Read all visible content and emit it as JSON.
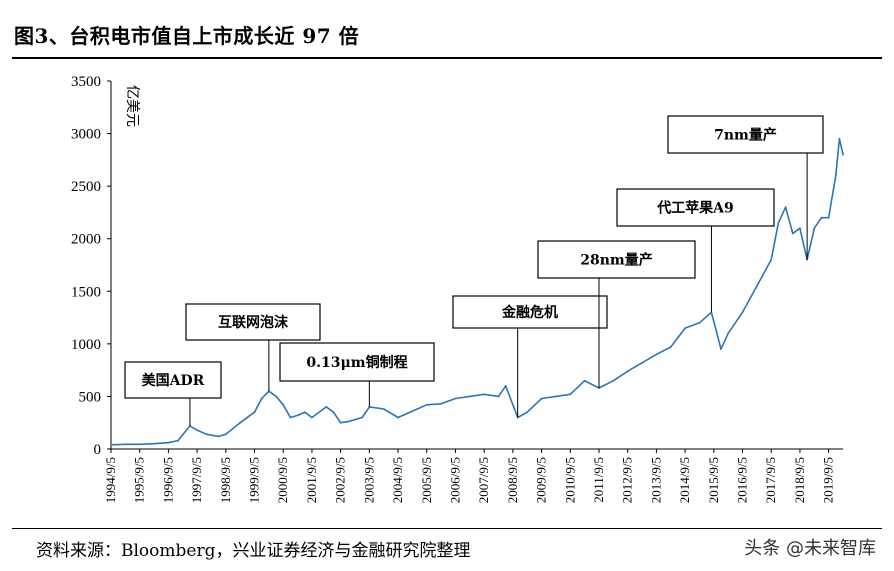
{
  "title": "图3、台积电市值自上市成长近 97 倍",
  "source": "资料来源：Bloomberg，兴业证券经济与金融研究院整理",
  "watermark": "头条 @未来智库",
  "chart_data": {
    "type": "line",
    "ylabel": "亿美元",
    "ylim": [
      0,
      3500
    ],
    "yticks": [
      0,
      500,
      1000,
      1500,
      2000,
      2500,
      3000,
      3500
    ],
    "xlim": [
      "1994/9/5",
      "2020/3/5"
    ],
    "xticks": [
      "1994/9/5",
      "1995/9/5",
      "1996/9/5",
      "1997/9/5",
      "1998/9/5",
      "1999/9/5",
      "2000/9/5",
      "2001/9/5",
      "2002/9/5",
      "2003/9/5",
      "2004/9/5",
      "2005/9/5",
      "2006/9/5",
      "2007/9/5",
      "2008/9/5",
      "2009/9/5",
      "2010/9/5",
      "2011/9/5",
      "2012/9/5",
      "2013/9/5",
      "2014/9/5",
      "2015/9/5",
      "2016/9/5",
      "2017/9/5",
      "2018/9/5",
      "2019/9/5"
    ],
    "grid": false,
    "line_color": "#2E75B6",
    "series": [
      {
        "x": [
          "1994/9/5",
          "1995/3/5",
          "1995/9/5",
          "1996/3/5",
          "1996/9/5",
          "1997/1/5",
          "1997/6/5",
          "1997/9/5",
          "1998/1/5",
          "1998/6/5",
          "1998/9/5",
          "1999/3/5",
          "1999/9/5",
          "1999/12/5",
          "2000/3/5",
          "2000/6/5",
          "2000/9/5",
          "2000/12/5",
          "2001/3/5",
          "2001/6/5",
          "2001/9/5",
          "2002/3/5",
          "2002/6/5",
          "2002/9/5",
          "2002/12/5",
          "2003/6/5",
          "2003/9/5",
          "2004/3/5",
          "2004/9/5",
          "2005/3/5",
          "2005/9/5",
          "2006/3/5",
          "2006/9/5",
          "2007/3/5",
          "2007/9/5",
          "2008/3/5",
          "2008/6/5",
          "2008/11/5",
          "2009/3/5",
          "2009/9/5",
          "2010/3/5",
          "2010/9/5",
          "2011/3/5",
          "2011/9/5",
          "2012/3/5",
          "2012/9/5",
          "2013/3/5",
          "2013/9/5",
          "2014/3/5",
          "2014/9/5",
          "2015/3/5",
          "2015/8/5",
          "2015/12/5",
          "2016/3/5",
          "2016/9/5",
          "2017/3/5",
          "2017/9/5",
          "2017/12/5",
          "2018/3/5",
          "2018/6/5",
          "2018/9/5",
          "2018/12/5",
          "2019/3/5",
          "2019/6/5",
          "2019/9/5",
          "2019/12/5",
          "2020/1/20",
          "2020/3/5"
        ],
        "y": [
          40,
          45,
          45,
          50,
          60,
          80,
          220,
          180,
          140,
          120,
          140,
          250,
          350,
          480,
          550,
          500,
          420,
          300,
          320,
          350,
          300,
          400,
          350,
          250,
          260,
          300,
          400,
          380,
          300,
          360,
          420,
          430,
          480,
          500,
          520,
          500,
          600,
          300,
          350,
          480,
          500,
          520,
          650,
          580,
          650,
          740,
          820,
          900,
          970,
          1150,
          1200,
          1300,
          950,
          1100,
          1300,
          1550,
          1800,
          2150,
          2300,
          2050,
          2100,
          1800,
          2100,
          2200,
          2200,
          2600,
          2950,
          2800
        ]
      }
    ],
    "annotations": [
      {
        "label": "美国ADR",
        "at": "1997/6/5"
      },
      {
        "label": "互联网泡沫",
        "at": "2000/3/5"
      },
      {
        "label": "0.13μm铜制程",
        "at": "2003/9/5"
      },
      {
        "label": "金融危机",
        "at": "2008/11/5"
      },
      {
        "label": "28nm量产",
        "at": "2011/9/5"
      },
      {
        "label": "代工苹果A9",
        "at": "2015/8/5"
      },
      {
        "label": "7nm量产",
        "at": "2018/12/5"
      }
    ]
  }
}
